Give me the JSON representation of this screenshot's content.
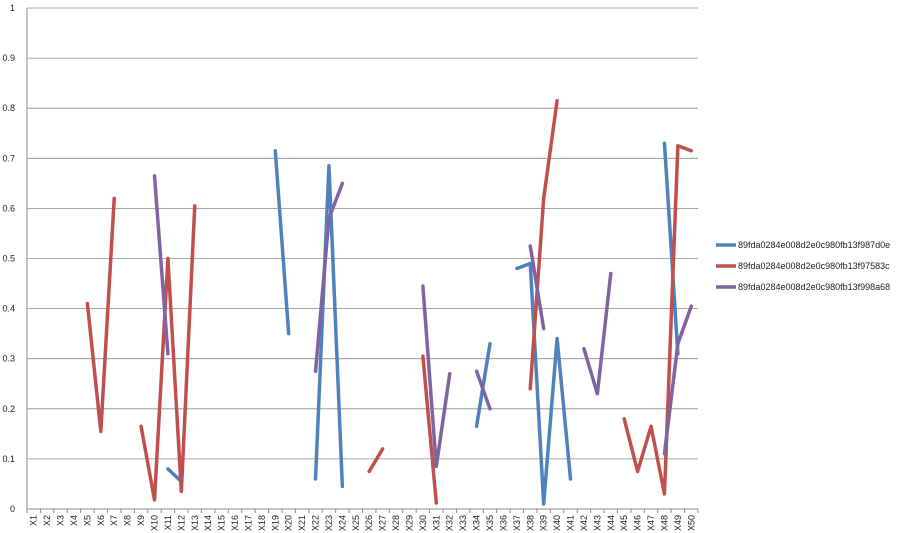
{
  "chart_data": {
    "type": "line",
    "title": "",
    "xlabel": "",
    "ylabel": "",
    "ylim": [
      0,
      1
    ],
    "yticks": [
      0,
      0.1,
      0.2,
      0.3,
      0.4,
      0.5,
      0.6,
      0.7,
      0.8,
      0.9,
      1
    ],
    "ytick_labels": [
      "0",
      "0.1",
      "0.2",
      "0.3",
      "0.4",
      "0.5",
      "0.6",
      "0.7",
      "0.8",
      "0.9",
      "1"
    ],
    "grid": true,
    "legend_position": "right",
    "categories": [
      "X1",
      "X2",
      "X3",
      "X4",
      "X5",
      "X6",
      "X7",
      "X8",
      "X9",
      "X10",
      "X11",
      "X12",
      "X13",
      "X14",
      "X15",
      "X16",
      "X17",
      "X18",
      "X19",
      "X20",
      "X21",
      "X22",
      "X23",
      "X24",
      "X25",
      "X26",
      "X27",
      "X28",
      "X29",
      "X30",
      "X31",
      "X32",
      "X33",
      "X34",
      "X35",
      "X36",
      "X37",
      "X38",
      "X39",
      "X40",
      "X41",
      "X42",
      "X43",
      "X44",
      "X45",
      "X46",
      "X47",
      "X48",
      "X49",
      "X50"
    ],
    "series": [
      {
        "name": "89fda0284e008d2e0c980fb13f987d0e",
        "color": "#4F81BD",
        "values": [
          null,
          null,
          null,
          null,
          null,
          null,
          null,
          null,
          null,
          null,
          0.08,
          0.055,
          null,
          null,
          null,
          null,
          null,
          null,
          0.715,
          0.35,
          null,
          0.06,
          0.685,
          0.045,
          null,
          null,
          null,
          null,
          null,
          null,
          null,
          null,
          null,
          0.165,
          0.33,
          null,
          0.48,
          0.49,
          0.01,
          0.34,
          0.06,
          null,
          null,
          null,
          null,
          null,
          null,
          0.73,
          0.31,
          null
        ]
      },
      {
        "name": "89fda0284e008d2e0c980fb13f97583c",
        "color": "#C0504D",
        "values": [
          null,
          null,
          null,
          null,
          0.41,
          0.155,
          0.62,
          null,
          0.165,
          0.018,
          0.5,
          0.035,
          0.605,
          null,
          null,
          null,
          null,
          null,
          null,
          null,
          null,
          null,
          null,
          null,
          null,
          0.075,
          0.12,
          null,
          null,
          0.305,
          0.012,
          null,
          null,
          null,
          null,
          null,
          null,
          0.24,
          0.62,
          0.815,
          null,
          null,
          null,
          null,
          0.18,
          0.075,
          0.165,
          0.03,
          0.725,
          0.715
        ]
      },
      {
        "name": "89fda0284e008d2e0c980fb13f998a68",
        "color": "#8064A2",
        "values": [
          null,
          null,
          null,
          null,
          null,
          null,
          null,
          null,
          null,
          0.665,
          0.31,
          null,
          null,
          null,
          null,
          null,
          null,
          null,
          null,
          null,
          null,
          0.275,
          0.58,
          0.65,
          null,
          null,
          null,
          null,
          null,
          0.445,
          0.085,
          0.27,
          null,
          0.275,
          0.2,
          null,
          null,
          0.525,
          0.36,
          null,
          null,
          0.32,
          0.23,
          0.47,
          null,
          null,
          null,
          0.11,
          0.33,
          0.405
        ]
      }
    ]
  }
}
